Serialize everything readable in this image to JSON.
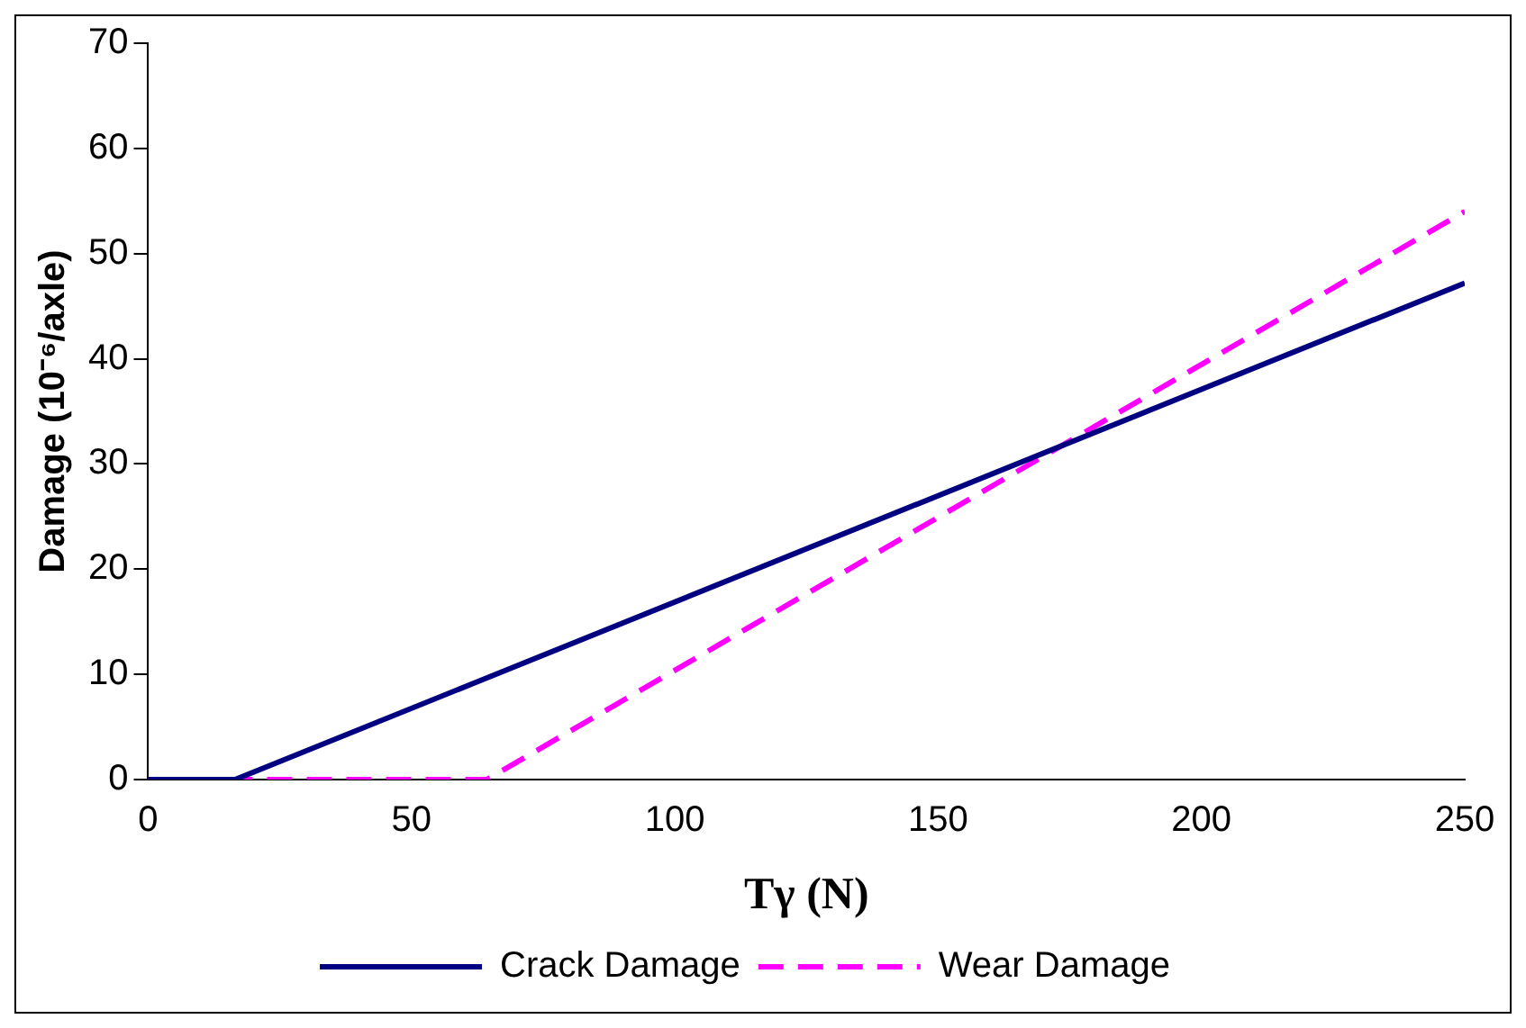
{
  "chart_data": {
    "type": "line",
    "xlabel": "Tγ (N)",
    "ylabel": "Damage (10⁻⁶/axle)",
    "xlim": [
      0,
      250
    ],
    "xticks": [
      0,
      50,
      100,
      150,
      200,
      250
    ],
    "ylim": [
      0,
      70
    ],
    "yticks": [
      0,
      10,
      20,
      30,
      40,
      50,
      60,
      70
    ],
    "grid": false,
    "legend": "bottom",
    "marker": "none",
    "series": [
      {
        "name": "Crack Damage",
        "color": "#000080",
        "x": [
          0,
          16.5,
          250
        ],
        "values": [
          0,
          0,
          47.2
        ],
        "line_style": "solid"
      },
      {
        "name": "Wear Damage",
        "color": "#ff00ff",
        "x": [
          0,
          64.3,
          250
        ],
        "values": [
          0,
          0,
          54
        ],
        "line_style": "dashed"
      }
    ]
  }
}
